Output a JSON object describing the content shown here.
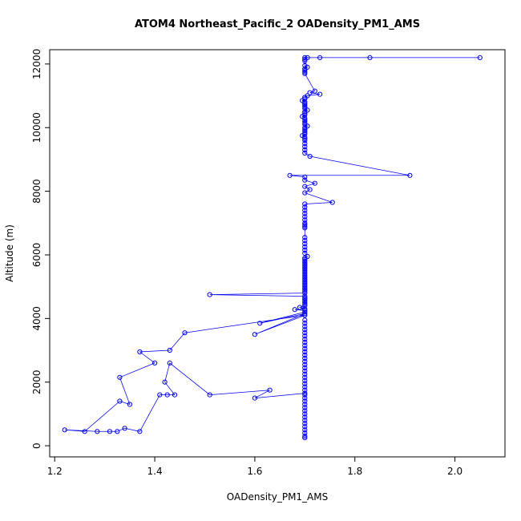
{
  "chart_data": {
    "type": "line",
    "title": "ATOM4 Northeast_Pacific_2 OADensity_PM1_AMS",
    "xlabel": "OADensity_PM1_AMS",
    "ylabel": "Altitude (m)",
    "xticks": [
      1.2,
      1.4,
      1.6,
      1.8,
      2.0
    ],
    "yticks": [
      0,
      2000,
      4000,
      6000,
      8000,
      10000,
      12000
    ],
    "xlim": [
      1.19,
      2.1
    ],
    "ylim": [
      -350,
      12450
    ],
    "grid": false,
    "legend": "none",
    "marker": "open-circle",
    "series_color": "#0000ee",
    "points": [
      [
        2.05,
        12200
      ],
      [
        1.83,
        12200
      ],
      [
        1.73,
        12200
      ],
      [
        1.705,
        12200
      ],
      [
        1.7,
        12200
      ],
      [
        1.7,
        12150
      ],
      [
        1.7,
        12100
      ],
      [
        1.7,
        11950
      ],
      [
        1.705,
        11900
      ],
      [
        1.7,
        11850
      ],
      [
        1.7,
        11800
      ],
      [
        1.7,
        11750
      ],
      [
        1.7,
        11700
      ],
      [
        1.72,
        11150
      ],
      [
        1.71,
        11100
      ],
      [
        1.73,
        11050
      ],
      [
        1.705,
        11000
      ],
      [
        1.7,
        10950
      ],
      [
        1.7,
        10900
      ],
      [
        1.695,
        10850
      ],
      [
        1.7,
        10800
      ],
      [
        1.7,
        10750
      ],
      [
        1.7,
        10700
      ],
      [
        1.7,
        10650
      ],
      [
        1.7,
        10600
      ],
      [
        1.705,
        10550
      ],
      [
        1.7,
        10500
      ],
      [
        1.7,
        10450
      ],
      [
        1.7,
        10400
      ],
      [
        1.695,
        10350
      ],
      [
        1.7,
        10300
      ],
      [
        1.7,
        10250
      ],
      [
        1.7,
        10200
      ],
      [
        1.7,
        10150
      ],
      [
        1.7,
        10100
      ],
      [
        1.705,
        10050
      ],
      [
        1.7,
        10000
      ],
      [
        1.7,
        9950
      ],
      [
        1.7,
        9900
      ],
      [
        1.7,
        9850
      ],
      [
        1.7,
        9800
      ],
      [
        1.695,
        9750
      ],
      [
        1.7,
        9700
      ],
      [
        1.7,
        9650
      ],
      [
        1.7,
        9600
      ],
      [
        1.7,
        9500
      ],
      [
        1.7,
        9400
      ],
      [
        1.7,
        9300
      ],
      [
        1.7,
        9200
      ],
      [
        1.71,
        9100
      ],
      [
        1.91,
        8500
      ],
      [
        1.67,
        8500
      ],
      [
        1.7,
        8450
      ],
      [
        1.7,
        8350
      ],
      [
        1.72,
        8250
      ],
      [
        1.7,
        8150
      ],
      [
        1.71,
        8050
      ],
      [
        1.7,
        7950
      ],
      [
        1.755,
        7650
      ],
      [
        1.7,
        7600
      ],
      [
        1.7,
        7500
      ],
      [
        1.7,
        7400
      ],
      [
        1.7,
        7300
      ],
      [
        1.7,
        7200
      ],
      [
        1.7,
        7100
      ],
      [
        1.7,
        7000
      ],
      [
        1.7,
        6950
      ],
      [
        1.7,
        6900
      ],
      [
        1.7,
        6850
      ],
      [
        1.7,
        6550
      ],
      [
        1.7,
        6450
      ],
      [
        1.7,
        6350
      ],
      [
        1.7,
        6250
      ],
      [
        1.7,
        6150
      ],
      [
        1.7,
        6050
      ],
      [
        1.705,
        5950
      ],
      [
        1.7,
        5900
      ],
      [
        1.7,
        5850
      ],
      [
        1.7,
        5800
      ],
      [
        1.7,
        5750
      ],
      [
        1.7,
        5700
      ],
      [
        1.7,
        5650
      ],
      [
        1.7,
        5600
      ],
      [
        1.7,
        5550
      ],
      [
        1.7,
        5500
      ],
      [
        1.7,
        5450
      ],
      [
        1.7,
        5400
      ],
      [
        1.7,
        5350
      ],
      [
        1.7,
        5300
      ],
      [
        1.7,
        5250
      ],
      [
        1.7,
        5200
      ],
      [
        1.7,
        5150
      ],
      [
        1.7,
        5100
      ],
      [
        1.7,
        5050
      ],
      [
        1.7,
        5000
      ],
      [
        1.7,
        4950
      ],
      [
        1.7,
        4900
      ],
      [
        1.7,
        4850
      ],
      [
        1.7,
        4800
      ],
      [
        1.51,
        4750
      ],
      [
        1.7,
        4700
      ],
      [
        1.7,
        4650
      ],
      [
        1.7,
        4600
      ],
      [
        1.7,
        4550
      ],
      [
        1.7,
        4500
      ],
      [
        1.7,
        4450
      ],
      [
        1.7,
        4400
      ],
      [
        1.69,
        4350
      ],
      [
        1.7,
        4300
      ],
      [
        1.68,
        4280
      ],
      [
        1.7,
        4250
      ],
      [
        1.7,
        4200
      ],
      [
        1.61,
        3850
      ],
      [
        1.7,
        4150
      ],
      [
        1.6,
        3500
      ],
      [
        1.7,
        4100
      ],
      [
        1.46,
        3550
      ],
      [
        1.43,
        3000
      ],
      [
        1.37,
        2950
      ],
      [
        1.4,
        2600
      ],
      [
        1.33,
        2150
      ],
      [
        1.35,
        1300
      ],
      [
        1.33,
        1400
      ],
      [
        1.26,
        450
      ],
      [
        1.22,
        500
      ],
      [
        1.285,
        450
      ],
      [
        1.31,
        450
      ],
      [
        1.325,
        450
      ],
      [
        1.34,
        550
      ],
      [
        1.37,
        450
      ],
      [
        1.41,
        1600
      ],
      [
        1.425,
        1600
      ],
      [
        1.44,
        1600
      ],
      [
        1.42,
        2000
      ],
      [
        1.43,
        2600
      ],
      [
        1.51,
        1600
      ],
      [
        1.63,
        1750
      ],
      [
        1.6,
        1500
      ],
      [
        1.7,
        1650
      ],
      [
        1.7,
        3950
      ],
      [
        1.7,
        3850
      ],
      [
        1.7,
        3750
      ],
      [
        1.7,
        3650
      ],
      [
        1.7,
        3550
      ],
      [
        1.7,
        3450
      ],
      [
        1.7,
        3350
      ],
      [
        1.7,
        3250
      ],
      [
        1.7,
        3150
      ],
      [
        1.7,
        3050
      ],
      [
        1.7,
        2950
      ],
      [
        1.7,
        2850
      ],
      [
        1.7,
        2750
      ],
      [
        1.7,
        2650
      ],
      [
        1.7,
        2550
      ],
      [
        1.7,
        2450
      ],
      [
        1.7,
        2350
      ],
      [
        1.7,
        2250
      ],
      [
        1.7,
        2150
      ],
      [
        1.7,
        2050
      ],
      [
        1.7,
        1950
      ],
      [
        1.7,
        1850
      ],
      [
        1.7,
        1750
      ],
      [
        1.7,
        1600
      ],
      [
        1.7,
        1500
      ],
      [
        1.7,
        1400
      ],
      [
        1.7,
        1300
      ],
      [
        1.7,
        1200
      ],
      [
        1.7,
        1100
      ],
      [
        1.7,
        1000
      ],
      [
        1.7,
        900
      ],
      [
        1.7,
        800
      ],
      [
        1.7,
        700
      ],
      [
        1.7,
        600
      ],
      [
        1.7,
        500
      ],
      [
        1.7,
        400
      ],
      [
        1.7,
        300
      ],
      [
        1.7,
        250
      ]
    ]
  }
}
